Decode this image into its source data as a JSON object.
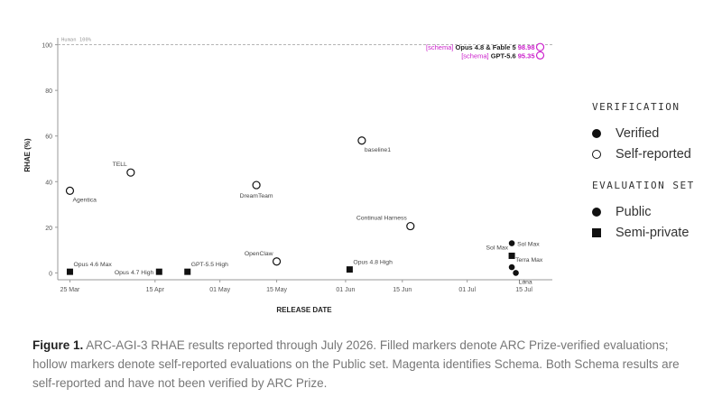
{
  "chart_data": {
    "type": "scatter",
    "xlabel": "RELEASE DATE",
    "ylabel": "RHAE (%)",
    "ylim": [
      -3,
      103
    ],
    "xlim": [
      "2026-03-22",
      "2026-07-22"
    ],
    "yticks": [
      "0",
      "20",
      "40",
      "60",
      "80",
      "100"
    ],
    "xticks": [
      {
        "date": "2026-03-25",
        "label": "25 Mar"
      },
      {
        "date": "2026-04-15",
        "label": "15 Apr"
      },
      {
        "date": "2026-05-01",
        "label": "01 May"
      },
      {
        "date": "2026-05-15",
        "label": "15 May"
      },
      {
        "date": "2026-06-01",
        "label": "01 Jun"
      },
      {
        "date": "2026-06-15",
        "label": "15 Jun"
      },
      {
        "date": "2026-07-01",
        "label": "01 Jul"
      },
      {
        "date": "2026-07-15",
        "label": "15 Jul"
      }
    ],
    "reference_line": {
      "y": 100,
      "label": "Human 100%"
    },
    "grid": false,
    "points": [
      {
        "label": "Agentica",
        "date": "2026-03-25",
        "y": 36,
        "verification": "self-reported",
        "set": "public",
        "label_pos": "below-right"
      },
      {
        "label": "TELL",
        "date": "2026-04-09",
        "y": 44,
        "verification": "self-reported",
        "set": "public",
        "label_pos": "above-left"
      },
      {
        "label": "DreamTeam",
        "date": "2026-05-10",
        "y": 38.5,
        "verification": "self-reported",
        "set": "public",
        "label_pos": "below"
      },
      {
        "label": "OpenClaw",
        "date": "2026-05-15",
        "y": 5,
        "verification": "self-reported",
        "set": "public",
        "label_pos": "above-left"
      },
      {
        "label": "baseline1",
        "date": "2026-06-05",
        "y": 58,
        "verification": "self-reported",
        "set": "public",
        "label_pos": "below-right"
      },
      {
        "label": "Continual Harness",
        "date": "2026-06-17",
        "y": 20.5,
        "verification": "self-reported",
        "set": "public",
        "label_pos": "above-left"
      },
      {
        "label": "Opus 4.6 Max",
        "date": "2026-03-25",
        "y": 0.5,
        "verification": "verified",
        "set": "semi-private",
        "label_pos": "above-right"
      },
      {
        "label": "Opus 4.7 High",
        "date": "2026-04-16",
        "y": 0.5,
        "verification": "verified",
        "set": "semi-private",
        "label_pos": "left"
      },
      {
        "label": "GPT-5.5 High",
        "date": "2026-04-23",
        "y": 0.5,
        "verification": "verified",
        "set": "semi-private",
        "label_pos": "above-right"
      },
      {
        "label": "Opus 4.8 High",
        "date": "2026-06-02",
        "y": 1.5,
        "verification": "verified",
        "set": "semi-private",
        "label_pos": "above-right"
      },
      {
        "label": "Sol Max",
        "date": "2026-07-12",
        "y": 13,
        "verification": "verified",
        "set": "public",
        "label_pos": "right"
      },
      {
        "label": "Sol Max",
        "date": "2026-07-12",
        "y": 7.5,
        "verification": "verified",
        "set": "semi-private",
        "label_pos": "above-left"
      },
      {
        "label": "Terra Max",
        "date": "2026-07-12",
        "y": 2.5,
        "verification": "verified",
        "set": "public",
        "label_pos": "above-right"
      },
      {
        "label": "Luna",
        "date": "2026-07-13",
        "y": 0,
        "verification": "verified",
        "set": "public",
        "label_pos": "below-right"
      }
    ],
    "highlighted": [
      {
        "tag": "[schema]",
        "label": "Opus 4.8 & Fable 5",
        "value": "98.98",
        "date": "2026-07-19",
        "y": 98.98,
        "verification": "self-reported",
        "set": "public"
      },
      {
        "tag": "[schema]",
        "label": "GPT-5.6",
        "value": "95.35",
        "date": "2026-07-19",
        "y": 95.35,
        "verification": "self-reported",
        "set": "public"
      }
    ],
    "highlight_color": "#cc22cc",
    "marker_color": "#111111"
  },
  "legend": {
    "verification_title": "VERIFICATION",
    "verified": "Verified",
    "self_reported": "Self-reported",
    "set_title": "EVALUATION SET",
    "public": "Public",
    "semi_private": "Semi-private"
  },
  "caption": {
    "label": "Figure 1.",
    "text": " ARC-AGI-3 RHAE results reported through July 2026. Filled markers denote ARC Prize-verified evaluations; hollow markers denote self-reported evaluations on the Public set. Magenta identifies Schema. Both Schema results are self-reported and have not been verified by ARC Prize."
  }
}
